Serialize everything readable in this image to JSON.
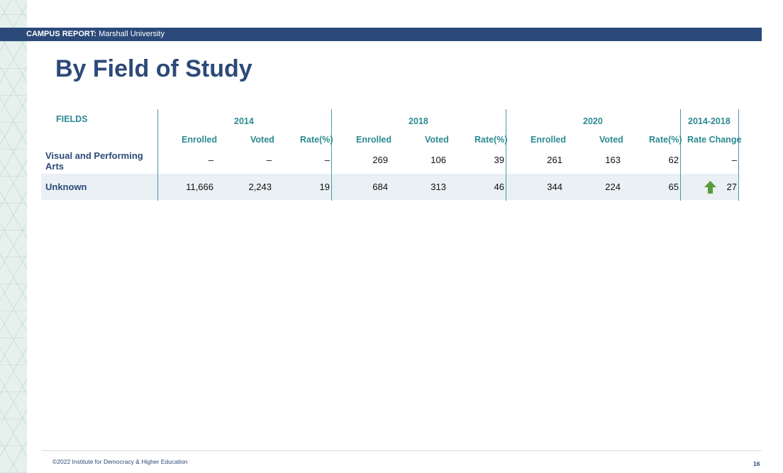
{
  "header": {
    "report_label": "CAMPUS REPORT:",
    "institution": "Marshall University"
  },
  "page_title": "By Field of Study",
  "table": {
    "fields_header": "FIELDS",
    "year_groups": [
      "2014",
      "2018",
      "2020",
      "2014-2018"
    ],
    "sub_headers": {
      "enrolled": "Enrolled",
      "voted": "Voted",
      "rate": "Rate(%)",
      "rate_change": "Rate Change"
    },
    "rows": [
      {
        "field": "Visual and Performing Arts",
        "y2014": {
          "enrolled": "–",
          "voted": "–",
          "rate": "–"
        },
        "y2018": {
          "enrolled": "269",
          "voted": "106",
          "rate": "39"
        },
        "y2020": {
          "enrolled": "261",
          "voted": "163",
          "rate": "62"
        },
        "rate_change": "–",
        "change_direction": "none"
      },
      {
        "field": "Unknown",
        "y2014": {
          "enrolled": "11,666",
          "voted": "2,243",
          "rate": "19"
        },
        "y2018": {
          "enrolled": "684",
          "voted": "313",
          "rate": "46"
        },
        "y2020": {
          "enrolled": "344",
          "voted": "224",
          "rate": "65"
        },
        "rate_change": "27",
        "change_direction": "up",
        "change_icon": "arrow-up-icon",
        "change_icon_color": "#5a9a3a"
      }
    ]
  },
  "footer": {
    "copyright": "©2022 Institute for Democracy & Higher Education",
    "page_number": "16"
  },
  "colors": {
    "brand_navy": "#2c4a79",
    "header_teal": "#2b8a91",
    "row_highlight": "#eaf0f4",
    "increase_green": "#5a9a3a"
  }
}
